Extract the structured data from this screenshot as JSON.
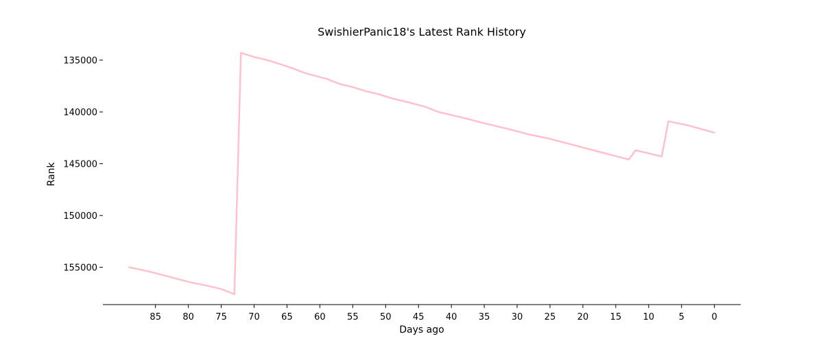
{
  "chart_data": {
    "type": "line",
    "title": "SwishierPanic18's Latest Rank History",
    "xlabel": "Days ago",
    "ylabel": "Rank",
    "x_reversed": true,
    "y_inverted": true,
    "xlim": [
      93,
      -4
    ],
    "ylim": [
      158600,
      133700
    ],
    "xticks": [
      85,
      80,
      75,
      70,
      65,
      60,
      55,
      50,
      45,
      40,
      35,
      30,
      25,
      20,
      15,
      10,
      5,
      0
    ],
    "yticks": [
      135000,
      140000,
      145000,
      150000,
      155000
    ],
    "grid": false,
    "line_color": "#ffc0cb",
    "series": [
      {
        "x": [
          89,
          86,
          83,
          80,
          77,
          75,
          73,
          72,
          71,
          70,
          68,
          65,
          62,
          59,
          57,
          55,
          53,
          51,
          49,
          47,
          44,
          42,
          38,
          35,
          31,
          28,
          25,
          22,
          19,
          16,
          13,
          12,
          10,
          8,
          7,
          4,
          0
        ],
        "y": [
          155000,
          155400,
          155900,
          156400,
          156800,
          157100,
          157600,
          134300,
          134500,
          134700,
          135000,
          135600,
          136300,
          136800,
          137300,
          137600,
          138000,
          138300,
          138700,
          139000,
          139500,
          140000,
          140600,
          141100,
          141700,
          142200,
          142600,
          143100,
          143600,
          144100,
          144600,
          143700,
          144000,
          144300,
          140900,
          141300,
          142000
        ]
      }
    ]
  }
}
